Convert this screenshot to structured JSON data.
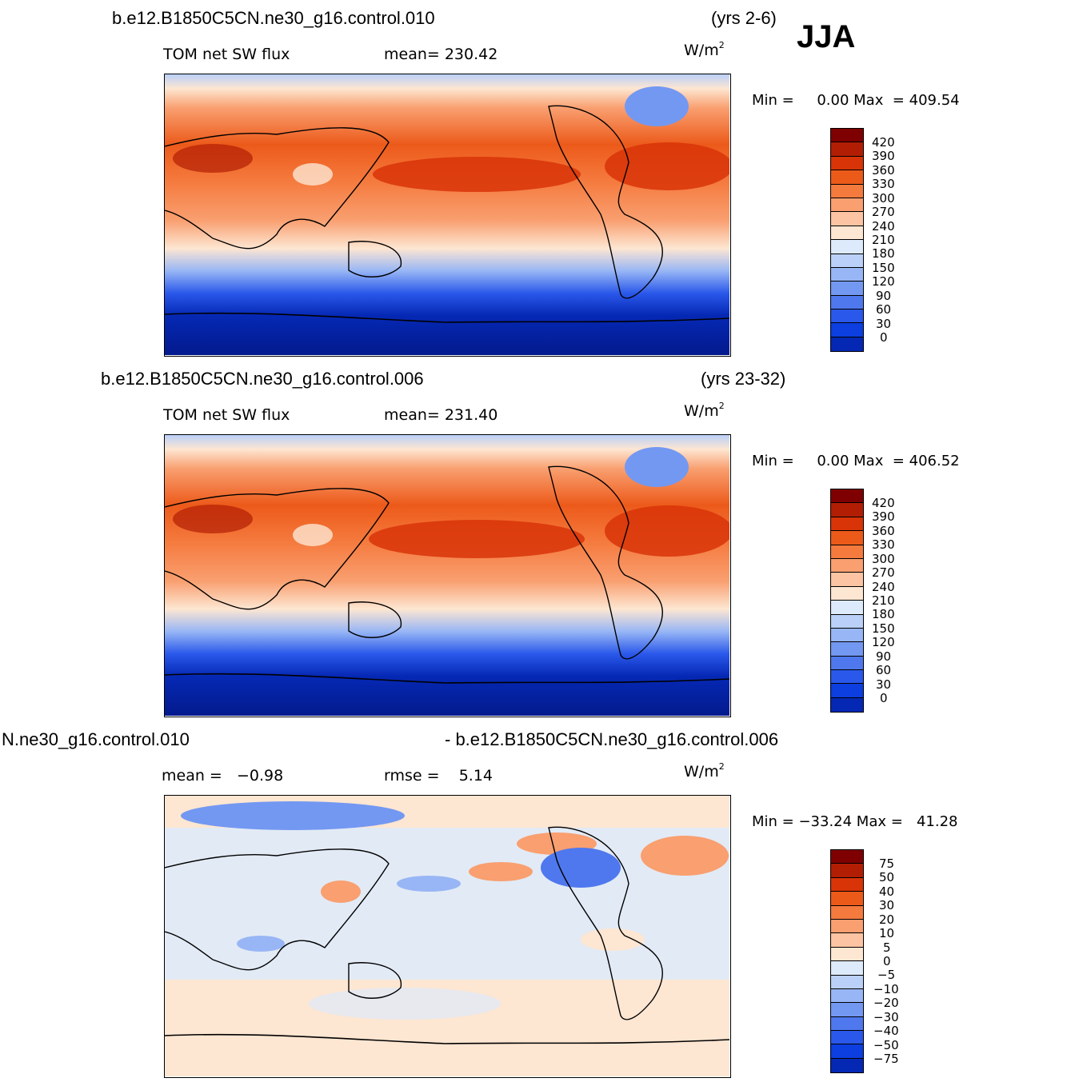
{
  "season": "JJA",
  "units": {
    "base": "W/m",
    "exp": "2"
  },
  "panels": [
    {
      "case": "b.e12.B1850C5CN.ne30_g16.control.010",
      "years": "(yrs 2-6)",
      "variable": "TOM net SW flux",
      "stat": "mean= 230.42",
      "minmax": "Min =     0.00 Max  = 409.54",
      "colorbar": {
        "colors": [
          "#7f0000",
          "#b21e04",
          "#d83408",
          "#ec5a1a",
          "#f57a3e",
          "#f99f70",
          "#fcc4a2",
          "#fde6d2",
          "#ddeafb",
          "#bad0f8",
          "#98b6f5",
          "#7398f2",
          "#4f78ee",
          "#2a58ea",
          "#0c3ee0",
          "#0528b4",
          "#031a8d",
          "#021673"
        ],
        "labels": [
          "420",
          "390",
          "360",
          "330",
          "300",
          "270",
          "240",
          "210",
          "180",
          "150",
          "120",
          "90",
          "60",
          "30",
          "0"
        ]
      }
    },
    {
      "case": "b.e12.B1850C5CN.ne30_g16.control.006",
      "years": "(yrs 23-32)",
      "variable": "TOM net SW flux",
      "stat": "mean= 231.40",
      "minmax": "Min =     0.00 Max  = 406.52",
      "colorbar": {
        "colors": [
          "#7f0000",
          "#b21e04",
          "#d83408",
          "#ec5a1a",
          "#f57a3e",
          "#f99f70",
          "#fcc4a2",
          "#fde6d2",
          "#ddeafb",
          "#bad0f8",
          "#98b6f5",
          "#7398f2",
          "#4f78ee",
          "#2a58ea",
          "#0c3ee0",
          "#0528b4",
          "#031a8d",
          "#021673"
        ],
        "labels": [
          "420",
          "390",
          "360",
          "330",
          "300",
          "270",
          "240",
          "210",
          "180",
          "150",
          "120",
          "90",
          "60",
          "30",
          "0"
        ]
      }
    },
    {
      "case": "N.ne30_g16.control.010",
      "case_right": "- b.e12.B1850C5CN.ne30_g16.control.006",
      "variable": "mean =   −0.98",
      "stat": "rmse =    5.14",
      "minmax": "Min = −33.24 Max =   41.28",
      "colorbar": {
        "colors": [
          "#7f0000",
          "#b21e04",
          "#d83408",
          "#ec5a1a",
          "#f57a3e",
          "#f99f70",
          "#fcc4a2",
          "#fde6d2",
          "#ddeafb",
          "#bad0f8",
          "#98b6f5",
          "#7398f2",
          "#4f78ee",
          "#2a58ea",
          "#0c3ee0",
          "#0528b4"
        ],
        "labels": [
          "75",
          "50",
          "40",
          "30",
          "20",
          "10",
          "5",
          "0",
          "−5",
          "−10",
          "−20",
          "−30",
          "−40",
          "−50",
          "−75"
        ]
      }
    }
  ]
}
